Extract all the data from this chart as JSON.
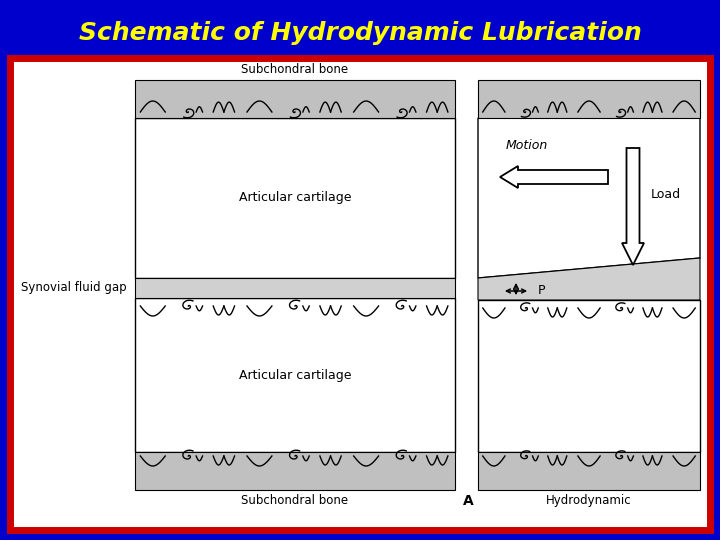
{
  "title": "Schematic of Hydrodynamic Lubrication",
  "title_color": "#FFFF00",
  "title_fontsize": 18,
  "bg_color": "#0000CC",
  "panel_bg": "#FFFFFF",
  "border_color": "#CC0000",
  "border_linewidth": 5,
  "text_color": "#000000",
  "labels": {
    "subchondral_bone_top": "Subchondral bone",
    "subchondral_bone_bottom": "Subchondral bone",
    "articular_cartilage_top": "Articular cartilage",
    "articular_cartilage_bottom": "Articular cartilage",
    "synovial_fluid_gap": "Synovial fluid gap",
    "motion": "Motion",
    "load": "Load",
    "P": "P",
    "A": "A",
    "hydrodynamic": "Hydrodynamic"
  },
  "fig_width": 7.2,
  "fig_height": 5.4,
  "dpi": 100
}
